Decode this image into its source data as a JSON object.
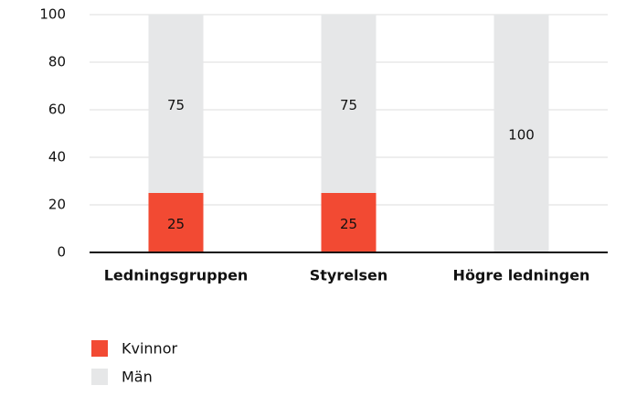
{
  "chart_data": {
    "type": "stacked_bar",
    "categories": [
      "Ledningsgruppen",
      "Styrelsen",
      "Högre ledningen"
    ],
    "series": [
      {
        "name": "Kvinnor",
        "color": "#f24a33",
        "values": [
          25,
          25,
          0
        ]
      },
      {
        "name": "Män",
        "color": "#e6e7e8",
        "values": [
          75,
          75,
          100
        ]
      }
    ],
    "ylim": [
      0,
      100
    ],
    "yticks": [
      0,
      20,
      40,
      60,
      80,
      100
    ],
    "grid": true,
    "legend": "bottom-left"
  }
}
